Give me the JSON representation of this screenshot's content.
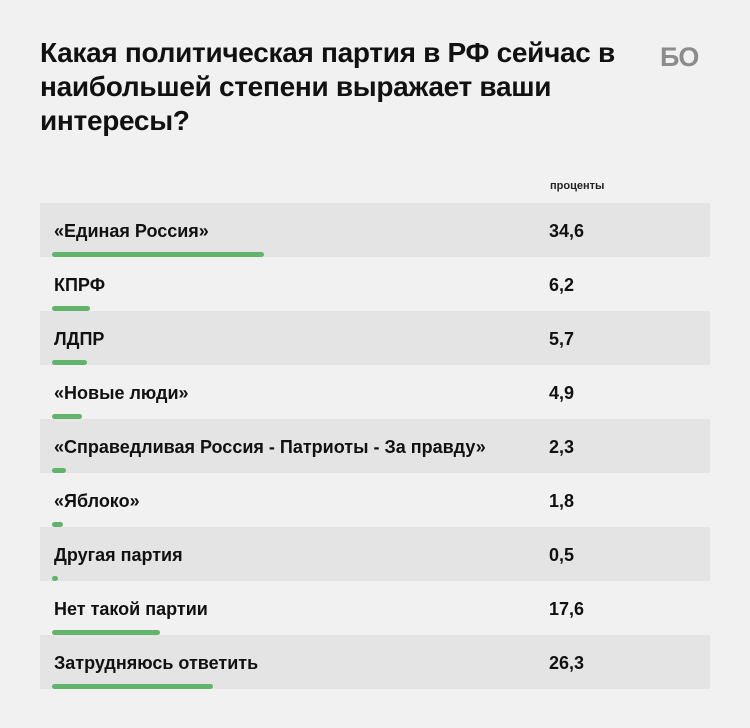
{
  "header": {
    "title": "Какая политическая партия в РФ сейчас в наибольшей степени выражает ваши интересы?",
    "logo": "БО"
  },
  "chart_data": {
    "type": "bar",
    "orientation": "horizontal",
    "unit_label": "проценты",
    "bar_color": "#62b36b",
    "categories": [
      "«Единая Россия»",
      "КПРФ",
      "ЛДПР",
      "«Новые люди»",
      "«Справедливая Россия - Патриоты - За правду»",
      "«Яблоко»",
      "Другая партия",
      "Нет такой партии",
      "Затрудняюсь ответить"
    ],
    "values": [
      34.6,
      6.2,
      5.7,
      4.9,
      2.3,
      1.8,
      0.5,
      17.6,
      26.3
    ],
    "value_labels": [
      "34,6",
      "6,2",
      "5,7",
      "4,9",
      "2,3",
      "1,8",
      "0,5",
      "17,6",
      "26,3"
    ],
    "xlim": [
      0,
      34.6
    ]
  }
}
